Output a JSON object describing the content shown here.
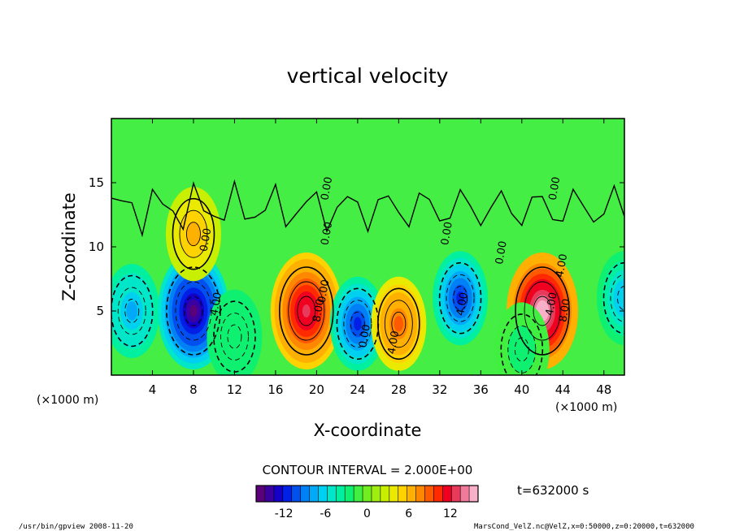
{
  "chart_data": {
    "type": "heatmap",
    "title": "vertical velocity",
    "xlabel": "X-coordinate",
    "ylabel": "Z-coordinate",
    "x_unit_left": "(×1000 m)",
    "x_unit_right": "(×1000 m)",
    "xlim": [
      0,
      50
    ],
    "ylim": [
      0,
      20
    ],
    "x_ticks": [
      4,
      8,
      12,
      16,
      20,
      24,
      28,
      32,
      36,
      40,
      44,
      48
    ],
    "y_ticks": [
      5,
      10,
      15
    ],
    "contour_interval_text": "CONTOUR INTERVAL = 2.000E+00",
    "time_text": "t=632000 s",
    "colorbar": {
      "min": -16,
      "max": 16,
      "ticks": [
        -12,
        -6,
        0,
        6,
        12
      ],
      "colors": [
        "#5a007a",
        "#3c00a0",
        "#1400c8",
        "#0020e6",
        "#0050f0",
        "#0080f5",
        "#00aaf8",
        "#00d0f0",
        "#00e6c8",
        "#00f0a0",
        "#10f070",
        "#40ef40",
        "#70ee20",
        "#a0ee10",
        "#c8ee00",
        "#eaea00",
        "#ffd200",
        "#ffb000",
        "#ff8800",
        "#ff5a00",
        "#ff2a00",
        "#f00020",
        "#e83a5a",
        "#f07a9a",
        "#f8b0c8"
      ]
    },
    "contour_labels": [
      "0.00",
      "4.00",
      "0.00",
      "0.00",
      "0.00",
      "8.00",
      "0.00",
      "4.00",
      "0.00",
      "4.00",
      "0.00",
      "4.00",
      "0.00",
      "4.00",
      "8.00"
    ],
    "cells": [
      {
        "x": 2,
        "z": 5,
        "w": -8
      },
      {
        "x": 8,
        "z": 5,
        "w": -15
      },
      {
        "x": 8,
        "z": 11,
        "w": 6
      },
      {
        "x": 19,
        "z": 5,
        "w": 13
      },
      {
        "x": 24,
        "z": 4,
        "w": -11
      },
      {
        "x": 28,
        "z": 4,
        "w": 9
      },
      {
        "x": 34,
        "z": 6,
        "w": -11
      },
      {
        "x": 42,
        "z": 5,
        "w": 16
      },
      {
        "x": 50,
        "z": 6,
        "w": -7
      },
      {
        "x": 12,
        "z": 3,
        "w": -3
      },
      {
        "x": 40,
        "z": 2,
        "w": -2
      }
    ]
  },
  "footer": {
    "left": "/usr/bin/gpview  2008-11-20",
    "right": "MarsCond_VelZ.nc@VelZ,x=0:50000,z=0:20000,t=632000"
  }
}
